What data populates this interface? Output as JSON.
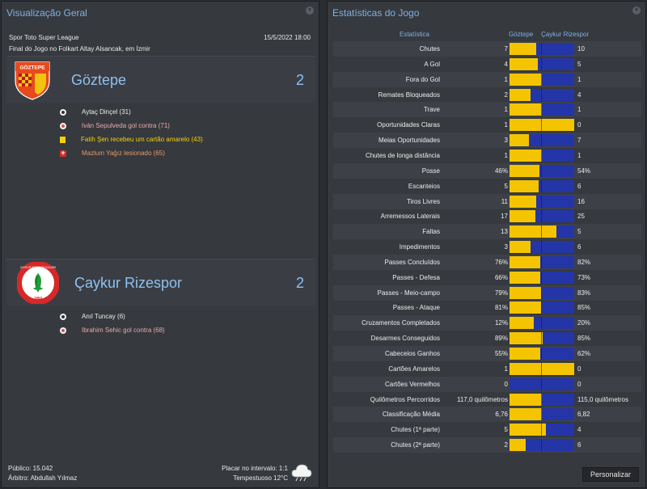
{
  "overview": {
    "title": "Visualização Geral",
    "competition": "Spor Toto Super League",
    "datetime": "15/5/2022 18:00",
    "venue_text": "Final do Jogo no Folkart Altay Alsancak, em İzmir",
    "home": {
      "name": "Göztepe",
      "score": "2",
      "badge_text": "GÖZTEPE",
      "colors": {
        "primary": "#e8491d",
        "secondary": "#f1c40f"
      },
      "events": [
        {
          "icon": "goal",
          "text": "Aytaç Dinçel (31)"
        },
        {
          "icon": "own-goal",
          "text": "Iván Sepulveda gol contra (71)"
        },
        {
          "icon": "yellow-card",
          "text": "Fatih Şen recebeu um cartão amarelo (43)"
        },
        {
          "icon": "injury",
          "text": "Mazlum Yağız lesionado (65)"
        }
      ]
    },
    "away": {
      "name": "Çaykur Rizespor",
      "score": "2",
      "badge_text": "ÇAYKUR RİZESPOR KULÜBÜ",
      "badge_year": "1953",
      "colors": {
        "primary": "#d62828",
        "secondary": "#1f9d3a"
      },
      "events": [
        {
          "icon": "goal",
          "text": "Anıl Tuncay (6)"
        },
        {
          "icon": "own-goal",
          "text": "Ibrahim Sehic gol contra (68)"
        }
      ]
    },
    "footer": {
      "attendance": "Público: 15.042",
      "referee": "Árbitro: Abdullah Yılmaz",
      "halftime": "Placar no intervalo: 1:1",
      "weather": "Tempestuoso 12°C",
      "weather_icon": "storm-cloud-icon"
    }
  },
  "stats": {
    "title": "Estatísticas do Jogo",
    "header": {
      "stat": "Estatística",
      "home": "Göztepe",
      "away": "Çaykur Rizespor"
    },
    "colors": {
      "home": "#f5c400",
      "away": "#2435a8"
    },
    "rows": [
      {
        "label": "Chutes",
        "home": "7",
        "away": "10",
        "home_share": 0.41
      },
      {
        "label": "A Gol",
        "home": "4",
        "away": "5",
        "home_share": 0.44
      },
      {
        "label": "Fora do Gol",
        "home": "1",
        "away": "1",
        "home_share": 0.5
      },
      {
        "label": "Remates Bloqueados",
        "home": "2",
        "away": "4",
        "home_share": 0.33
      },
      {
        "label": "Trave",
        "home": "1",
        "away": "1",
        "home_share": 0.5
      },
      {
        "label": "Oportunidades Claras",
        "home": "1",
        "away": "0",
        "home_share": 1.0
      },
      {
        "label": "Meias Oportunidades",
        "home": "3",
        "away": "7",
        "home_share": 0.3
      },
      {
        "label": "Chutes de longa distância",
        "home": "1",
        "away": "1",
        "home_share": 0.5
      },
      {
        "label": "Posse",
        "home": "46%",
        "away": "54%",
        "home_share": 0.46
      },
      {
        "label": "Escanteios",
        "home": "5",
        "away": "6",
        "home_share": 0.45
      },
      {
        "label": "Tiros Livres",
        "home": "11",
        "away": "16",
        "home_share": 0.41
      },
      {
        "label": "Arremessos Laterais",
        "home": "17",
        "away": "25",
        "home_share": 0.4
      },
      {
        "label": "Faltas",
        "home": "13",
        "away": "5",
        "home_share": 0.72
      },
      {
        "label": "Impedimentos",
        "home": "3",
        "away": "6",
        "home_share": 0.33
      },
      {
        "label": "Passes Concluídos",
        "home": "76%",
        "away": "82%",
        "home_share": 0.48
      },
      {
        "label": "Passes - Defesa",
        "home": "66%",
        "away": "73%",
        "home_share": 0.47
      },
      {
        "label": "Passes - Meio-campo",
        "home": "79%",
        "away": "83%",
        "home_share": 0.49
      },
      {
        "label": "Passes - Ataque",
        "home": "81%",
        "away": "85%",
        "home_share": 0.49
      },
      {
        "label": "Cruzamentos Completados",
        "home": "12%",
        "away": "20%",
        "home_share": 0.38
      },
      {
        "label": "Desarmes Conseguidos",
        "home": "89%",
        "away": "85%",
        "home_share": 0.51
      },
      {
        "label": "Cabeceios Ganhos",
        "home": "55%",
        "away": "62%",
        "home_share": 0.47
      },
      {
        "label": "Cartões Amarelos",
        "home": "1",
        "away": "0",
        "home_share": 1.0
      },
      {
        "label": "Cartões Vermelhos",
        "home": "0",
        "away": "0",
        "home_share": 0
      },
      {
        "label": "Quilômetros Percorridos",
        "home": "117,0 quilômetros",
        "away": "115,0 quilômetros",
        "home_share": 0.5
      },
      {
        "label": "Classificação Média",
        "home": "6,76",
        "away": "6,82",
        "home_share": 0.5
      },
      {
        "label": "Chutes (1ª parte)",
        "home": "5",
        "away": "4",
        "home_share": 0.56
      },
      {
        "label": "Chutes (2ª parte)",
        "home": "2",
        "away": "6",
        "home_share": 0.25
      }
    ],
    "customize_label": "Personalizar"
  }
}
